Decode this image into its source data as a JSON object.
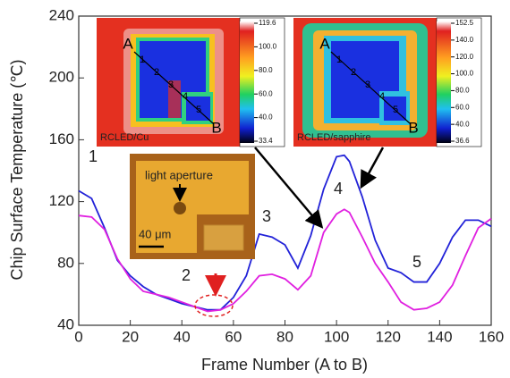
{
  "chart_data": {
    "type": "line",
    "x_label": "Frame Number (A to B)",
    "y_label": "Chip Surface Temperature (℃)",
    "x": [
      0,
      5,
      10,
      15,
      20,
      25,
      30,
      35,
      40,
      45,
      50,
      55,
      60,
      65,
      70,
      75,
      80,
      85,
      90,
      95,
      100,
      103,
      105,
      110,
      115,
      120,
      125,
      130,
      135,
      140,
      145,
      150,
      155,
      160
    ],
    "series": [
      {
        "color": "#2222d8",
        "values": [
          127,
          122,
          103,
          82,
          72,
          65,
          60,
          57,
          54,
          52,
          50,
          50,
          58,
          72,
          99,
          97,
          92,
          77,
          98,
          128,
          149,
          150,
          146,
          123,
          95,
          77,
          74,
          68,
          68,
          80,
          97,
          108,
          108,
          104
        ]
      },
      {
        "color": "#e020e0",
        "values": [
          111,
          110,
          102,
          83,
          70,
          62,
          60,
          58,
          55,
          52,
          49,
          50,
          54,
          62,
          72,
          73,
          70,
          63,
          72,
          100,
          112,
          115,
          113,
          97,
          80,
          68,
          55,
          50,
          51,
          55,
          66,
          85,
          103,
          109
        ]
      }
    ],
    "xlim": [
      0,
      160
    ],
    "xticks": [
      0,
      20,
      40,
      60,
      80,
      100,
      120,
      140,
      160
    ],
    "ylim": [
      40,
      240
    ],
    "yticks": [
      40,
      80,
      120,
      160,
      200,
      240
    ],
    "annotations": [
      "1",
      "2",
      "3",
      "4",
      "5"
    ],
    "micrograph": {
      "label": "light aperture",
      "scale": "40 μm"
    },
    "insets": [
      {
        "label": "RCLED/Cu",
        "markers": [
          "A",
          "1",
          "2",
          "3",
          "4",
          "5",
          "B"
        ],
        "colorbar": [
          "119.6",
          "100.0",
          "80.0",
          "60.0",
          "40.0",
          "33.4"
        ]
      },
      {
        "label": "RCLED/sapphire",
        "markers": [
          "A",
          "1",
          "2",
          "3",
          "4",
          "5",
          "B"
        ],
        "colorbar": [
          "152.5",
          "140.0",
          "120.0",
          "100.0",
          "80.0",
          "60.0",
          "40.0",
          "36.6"
        ]
      }
    ]
  }
}
